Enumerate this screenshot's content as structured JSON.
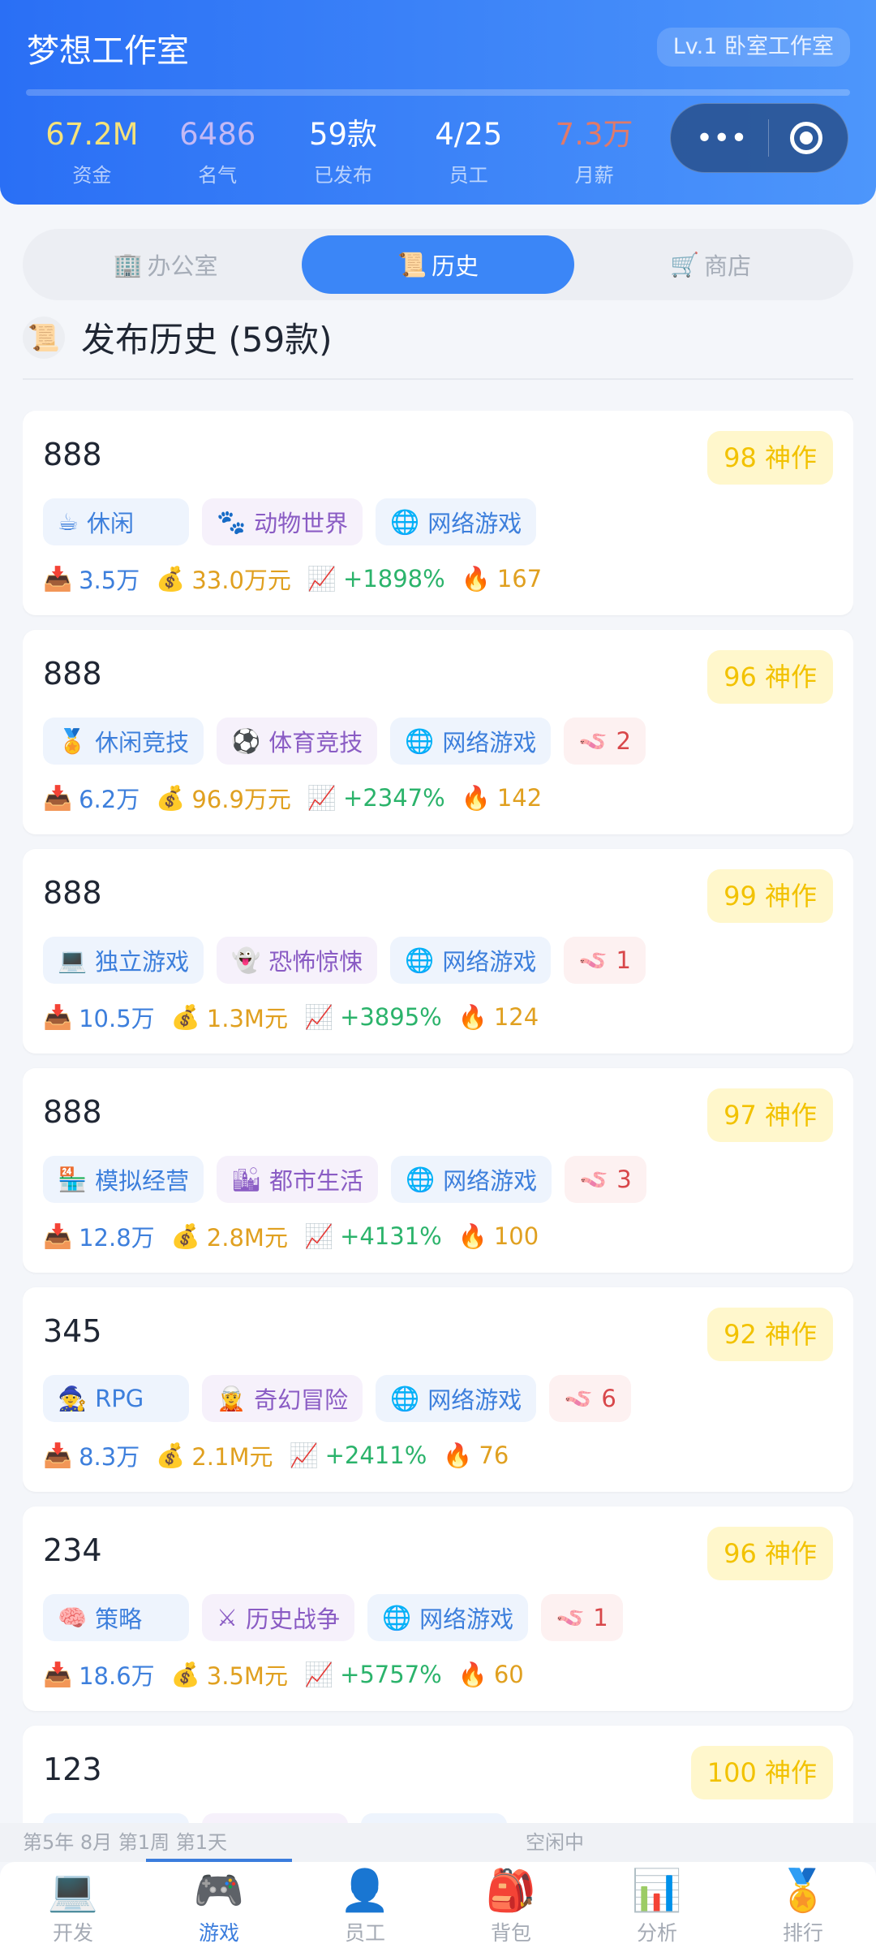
{
  "header": {
    "title": "梦想工作室",
    "level": "Lv.1 卧室工作室",
    "xp_progress": 0,
    "stats": [
      {
        "value": "67.2M",
        "label": "资金",
        "color": "#f5e27a"
      },
      {
        "value": "6486",
        "label": "名气",
        "color": "#c3b9f5"
      },
      {
        "value": "59款",
        "label": "已发布",
        "color": "#ffffff"
      },
      {
        "value": "4/25",
        "label": "员工",
        "color": "#ffffff"
      },
      {
        "value": "7.3万",
        "label": "月薪",
        "color": "#e07a6a"
      }
    ]
  },
  "capsule": {
    "more": "•••"
  },
  "tabs": [
    {
      "icon": "🏢",
      "label": "办公室"
    },
    {
      "icon": "📜",
      "label": "历史",
      "active": true
    },
    {
      "icon": "🛒",
      "label": "商店"
    }
  ],
  "section": {
    "icon": "📜",
    "title": "发布历史 (59款)"
  },
  "games": [
    {
      "name": "888",
      "score": "98 神作",
      "tags": [
        {
          "type": "genre",
          "icon": "☕",
          "label": "休闲"
        },
        {
          "type": "theme",
          "icon": "🐾",
          "label": "动物世界"
        },
        {
          "type": "net",
          "icon": "🌐",
          "label": "网络游戏"
        }
      ],
      "downloads": "3.5万",
      "revenue": "33.0万元",
      "growth": "+1898%",
      "heat": "167"
    },
    {
      "name": "888",
      "score": "96 神作",
      "tags": [
        {
          "type": "genre",
          "icon": "🏅",
          "label": "休闲竞技"
        },
        {
          "type": "theme",
          "icon": "⚽",
          "label": "体育竞技"
        },
        {
          "type": "net",
          "icon": "🌐",
          "label": "网络游戏"
        },
        {
          "type": "seq",
          "icon": "🪱",
          "label": "2"
        }
      ],
      "downloads": "6.2万",
      "revenue": "96.9万元",
      "growth": "+2347%",
      "heat": "142"
    },
    {
      "name": "888",
      "score": "99 神作",
      "tags": [
        {
          "type": "genre",
          "icon": "💻",
          "label": "独立游戏"
        },
        {
          "type": "theme",
          "icon": "👻",
          "label": "恐怖惊悚"
        },
        {
          "type": "net",
          "icon": "🌐",
          "label": "网络游戏"
        },
        {
          "type": "seq",
          "icon": "🪱",
          "label": "1"
        }
      ],
      "downloads": "10.5万",
      "revenue": "1.3M元",
      "growth": "+3895%",
      "heat": "124"
    },
    {
      "name": "888",
      "score": "97 神作",
      "tags": [
        {
          "type": "genre",
          "icon": "🏪",
          "label": "模拟经营"
        },
        {
          "type": "theme",
          "icon": "🏙",
          "label": "都市生活"
        },
        {
          "type": "net",
          "icon": "🌐",
          "label": "网络游戏"
        },
        {
          "type": "seq",
          "icon": "🪱",
          "label": "3"
        }
      ],
      "downloads": "12.8万",
      "revenue": "2.8M元",
      "growth": "+4131%",
      "heat": "100"
    },
    {
      "name": "345",
      "score": "92 神作",
      "tags": [
        {
          "type": "genre",
          "icon": "🧙",
          "label": "RPG"
        },
        {
          "type": "theme",
          "icon": "🧝",
          "label": "奇幻冒险"
        },
        {
          "type": "net",
          "icon": "🌐",
          "label": "网络游戏"
        },
        {
          "type": "seq",
          "icon": "🪱",
          "label": "6"
        }
      ],
      "downloads": "8.3万",
      "revenue": "2.1M元",
      "growth": "+2411%",
      "heat": "76"
    },
    {
      "name": "234",
      "score": "96 神作",
      "tags": [
        {
          "type": "genre",
          "icon": "🧠",
          "label": "策略"
        },
        {
          "type": "theme",
          "icon": "⚔",
          "label": "历史战争"
        },
        {
          "type": "net",
          "icon": "🌐",
          "label": "网络游戏"
        },
        {
          "type": "seq",
          "icon": "🪱",
          "label": "1"
        }
      ],
      "downloads": "18.6万",
      "revenue": "3.5M元",
      "growth": "+5757%",
      "heat": "60"
    },
    {
      "name": "123",
      "score": "100 神作",
      "tags": [
        {
          "type": "genre",
          "icon": "",
          "label": ""
        },
        {
          "type": "theme",
          "icon": "",
          "label": ""
        },
        {
          "type": "net",
          "icon": "",
          "label": ""
        }
      ],
      "downloads": "",
      "revenue": "",
      "growth": "",
      "heat": ""
    }
  ],
  "metric_icons": {
    "downloads": "📥",
    "revenue": "💰",
    "growth": "📈",
    "heat": "🔥"
  },
  "status": {
    "date": "第5年 8月 第1周 第1天",
    "state": "空闲中"
  },
  "nav": [
    {
      "icon": "💻",
      "label": "开发"
    },
    {
      "icon": "🎮",
      "label": "游戏",
      "active": true
    },
    {
      "icon": "👤",
      "label": "员工"
    },
    {
      "icon": "🎒",
      "label": "背包"
    },
    {
      "icon": "📊",
      "label": "分析"
    },
    {
      "icon": "🏅",
      "label": "排行"
    }
  ]
}
